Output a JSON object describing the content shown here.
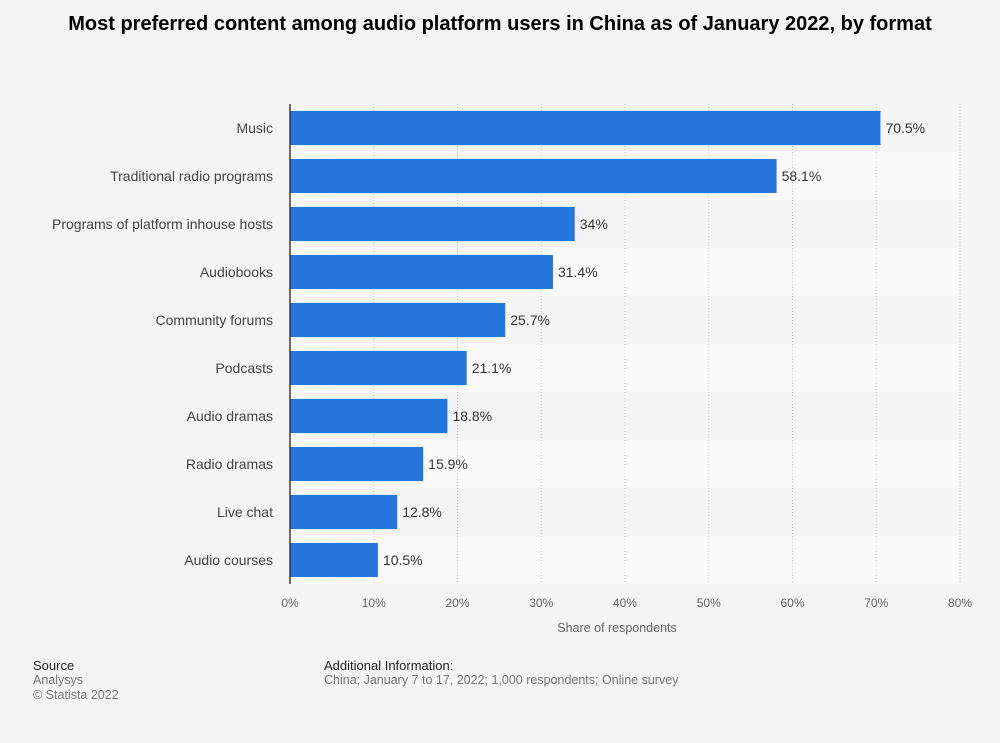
{
  "title": "Most preferred content among audio platform users in China as of January 2022, by format",
  "footer": {
    "source_label": "Source",
    "source_name": "Analysys",
    "copyright": "© Statista 2022",
    "additional_label": "Additional Information:",
    "additional_text": "China; January 7 to 17, 2022; 1,000 respondents; Online survey"
  },
  "colors": {
    "bar": "#2776de",
    "background": "#f4f4f4",
    "band": "#fafafa"
  },
  "chart_data": {
    "type": "bar",
    "orientation": "horizontal",
    "categories": [
      "Music",
      "Traditional radio programs",
      "Programs of platform inhouse hosts",
      "Audiobooks",
      "Community forums",
      "Podcasts",
      "Audio dramas",
      "Radio dramas",
      "Live chat",
      "Audio courses"
    ],
    "values": [
      70.5,
      58.1,
      34,
      31.4,
      25.7,
      21.1,
      18.8,
      15.9,
      12.8,
      10.5
    ],
    "value_labels": [
      "70.5%",
      "58.1%",
      "34%",
      "31.4%",
      "25.7%",
      "21.1%",
      "18.8%",
      "15.9%",
      "12.8%",
      "10.5%"
    ],
    "xlim": [
      0,
      80
    ],
    "xticks": [
      0,
      10,
      20,
      30,
      40,
      50,
      60,
      70,
      80
    ],
    "xtick_labels": [
      "0%",
      "10%",
      "20%",
      "30%",
      "40%",
      "50%",
      "60%",
      "70%",
      "80%"
    ],
    "xlabel": "Share of respondents",
    "ylabel": "",
    "grid": true,
    "legend": "none"
  }
}
